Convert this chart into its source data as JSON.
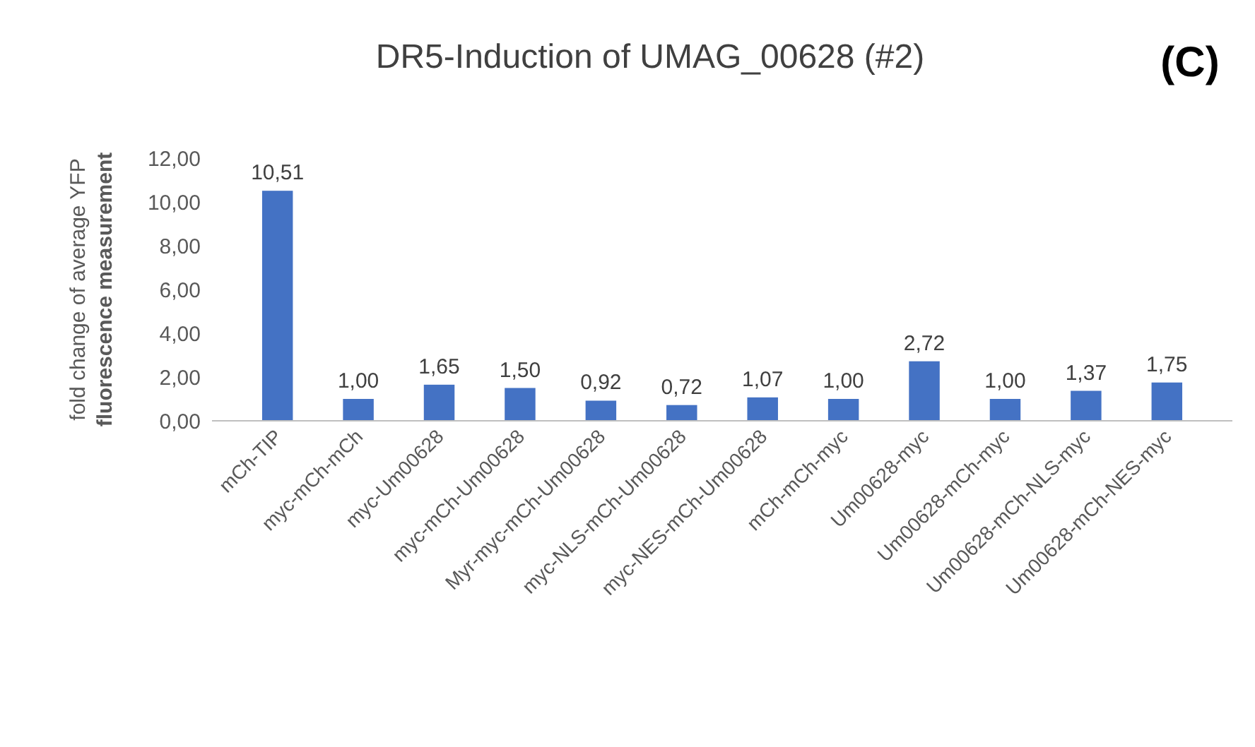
{
  "chart_data": {
    "type": "bar",
    "title": "DR5-Induction of UMAG_00628 (#2)",
    "ylabel": "fold change of average YFP\nfluorescence measurement",
    "annotations": [
      "(C)"
    ],
    "categories": [
      "mCh-TIP",
      "myc-mCh-mCh",
      "myc-Um00628",
      "myc-mCh-Um00628",
      "Myr-myc-mCh-Um00628",
      "myc-NLS-mCh-Um00628",
      "myc-NES-mCh-Um00628",
      "mCh-mCh-myc",
      "Um00628-myc",
      "Um00628-mCh-myc",
      "Um00628-mCh-NLS-myc",
      "Um00628-mCh-NES-myc"
    ],
    "values": [
      10.51,
      1.0,
      1.65,
      1.5,
      0.92,
      0.72,
      1.07,
      1.0,
      2.72,
      1.0,
      1.37,
      1.75
    ],
    "value_labels": [
      "10,51",
      "1,00",
      "1,65",
      "1,50",
      "0,92",
      "0,72",
      "1,07",
      "1,00",
      "2,72",
      "1,00",
      "1,37",
      "1,75"
    ],
    "color": "#4472c4",
    "ylim": [
      0,
      12
    ],
    "yticks": [
      {
        "value": 0,
        "label": "0,00"
      },
      {
        "value": 2,
        "label": "2,00"
      },
      {
        "value": 4,
        "label": "4,00"
      },
      {
        "value": 6,
        "label": "6,00"
      },
      {
        "value": 8,
        "label": "8,00"
      },
      {
        "value": 10,
        "label": "10,00"
      },
      {
        "value": 12,
        "label": "12,00"
      }
    ],
    "grid": false
  }
}
